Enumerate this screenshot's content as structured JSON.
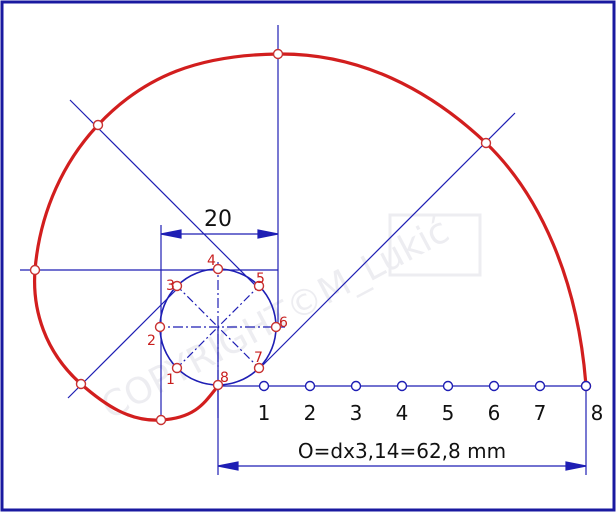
{
  "dimension_top": "20",
  "circle_labels": [
    "1",
    "2",
    "3",
    "4",
    "5",
    "6",
    "7",
    "8"
  ],
  "axis_labels": [
    "1",
    "2",
    "3",
    "4",
    "5",
    "6",
    "7",
    "8"
  ],
  "formula": "O=dx3,14=62,8 mm",
  "watermark": "COPYRIGHT©M_Lukić",
  "colors": {
    "frame": "#1a1aa0",
    "construction": "#1e1eb4",
    "spiral": "#d21e1e",
    "points": "#c83232"
  }
}
